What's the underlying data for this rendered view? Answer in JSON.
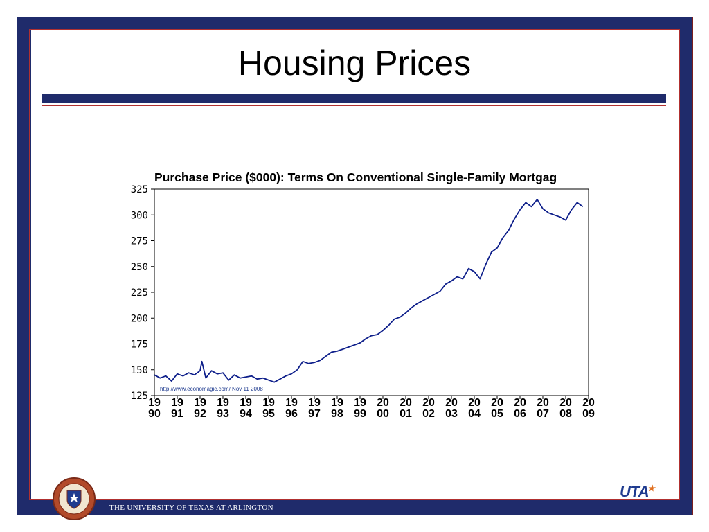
{
  "slide": {
    "title": "Housing Prices",
    "footer": "THE UNIVERSITY OF TEXAS AT ARLINGTON",
    "logo_text": "UTA",
    "seal_icon": "university-seal-icon",
    "colors": {
      "navy": "#1f2b6b",
      "red": "#b03030",
      "line": "#0d1e8a"
    }
  },
  "chart_data": {
    "type": "line",
    "title": "Purchase Price ($000): Terms On Conventional Single-Family Mortgag",
    "source_note": "http://www.economagic.com/  Nov 11 2008",
    "ylim": [
      125,
      325
    ],
    "yticks": [
      325,
      300,
      275,
      250,
      225,
      200,
      175,
      150,
      125
    ],
    "xlim": [
      1990,
      2009
    ],
    "xticks": [
      {
        "top": "19",
        "bottom": "90"
      },
      {
        "top": "19",
        "bottom": "91"
      },
      {
        "top": "19",
        "bottom": "92"
      },
      {
        "top": "19",
        "bottom": "93"
      },
      {
        "top": "19",
        "bottom": "94"
      },
      {
        "top": "19",
        "bottom": "95"
      },
      {
        "top": "19",
        "bottom": "96"
      },
      {
        "top": "19",
        "bottom": "97"
      },
      {
        "top": "19",
        "bottom": "98"
      },
      {
        "top": "19",
        "bottom": "99"
      },
      {
        "top": "20",
        "bottom": "00"
      },
      {
        "top": "20",
        "bottom": "01"
      },
      {
        "top": "20",
        "bottom": "02"
      },
      {
        "top": "20",
        "bottom": "03"
      },
      {
        "top": "20",
        "bottom": "04"
      },
      {
        "top": "20",
        "bottom": "05"
      },
      {
        "top": "20",
        "bottom": "06"
      },
      {
        "top": "20",
        "bottom": "07"
      },
      {
        "top": "20",
        "bottom": "08"
      },
      {
        "top": "20",
        "bottom": "09"
      }
    ],
    "series": [
      {
        "x": [
          1990.0,
          1990.25,
          1990.5,
          1990.75,
          1991.0,
          1991.25,
          1991.5,
          1991.75,
          1992.0,
          1992.08,
          1992.25,
          1992.5,
          1992.75,
          1993.0,
          1993.25,
          1993.5,
          1993.75,
          1994.0,
          1994.25,
          1994.5,
          1994.75,
          1995.0,
          1995.25,
          1995.5,
          1995.75,
          1996.0,
          1996.25,
          1996.5,
          1996.75,
          1997.0,
          1997.25,
          1997.5,
          1997.75,
          1998.0,
          1998.25,
          1998.5,
          1998.75,
          1999.0,
          1999.25,
          1999.5,
          1999.75,
          2000.0,
          2000.25,
          2000.5,
          2000.75,
          2001.0,
          2001.25,
          2001.5,
          2001.75,
          2002.0,
          2002.25,
          2002.5,
          2002.75,
          2003.0,
          2003.25,
          2003.5,
          2003.75,
          2004.0,
          2004.25,
          2004.5,
          2004.75,
          2005.0,
          2005.25,
          2005.5,
          2005.75,
          2006.0,
          2006.25,
          2006.5,
          2006.75,
          2007.0,
          2007.25,
          2007.5,
          2007.75,
          2008.0,
          2008.25,
          2008.5,
          2008.75
        ],
        "values": [
          145,
          142,
          144,
          139,
          146,
          144,
          147,
          145,
          149,
          158,
          142,
          149,
          146,
          147,
          140,
          145,
          142,
          143,
          144,
          141,
          142,
          140,
          138,
          141,
          144,
          146,
          150,
          158,
          156,
          157,
          159,
          163,
          167,
          168,
          170,
          172,
          174,
          176,
          180,
          183,
          184,
          188,
          193,
          199,
          201,
          205,
          210,
          214,
          217,
          220,
          223,
          226,
          233,
          236,
          240,
          238,
          248,
          245,
          238,
          252,
          264,
          268,
          278,
          285,
          296,
          305,
          312,
          308,
          315,
          306,
          302,
          300,
          298,
          295,
          305,
          312,
          308
        ]
      }
    ]
  }
}
